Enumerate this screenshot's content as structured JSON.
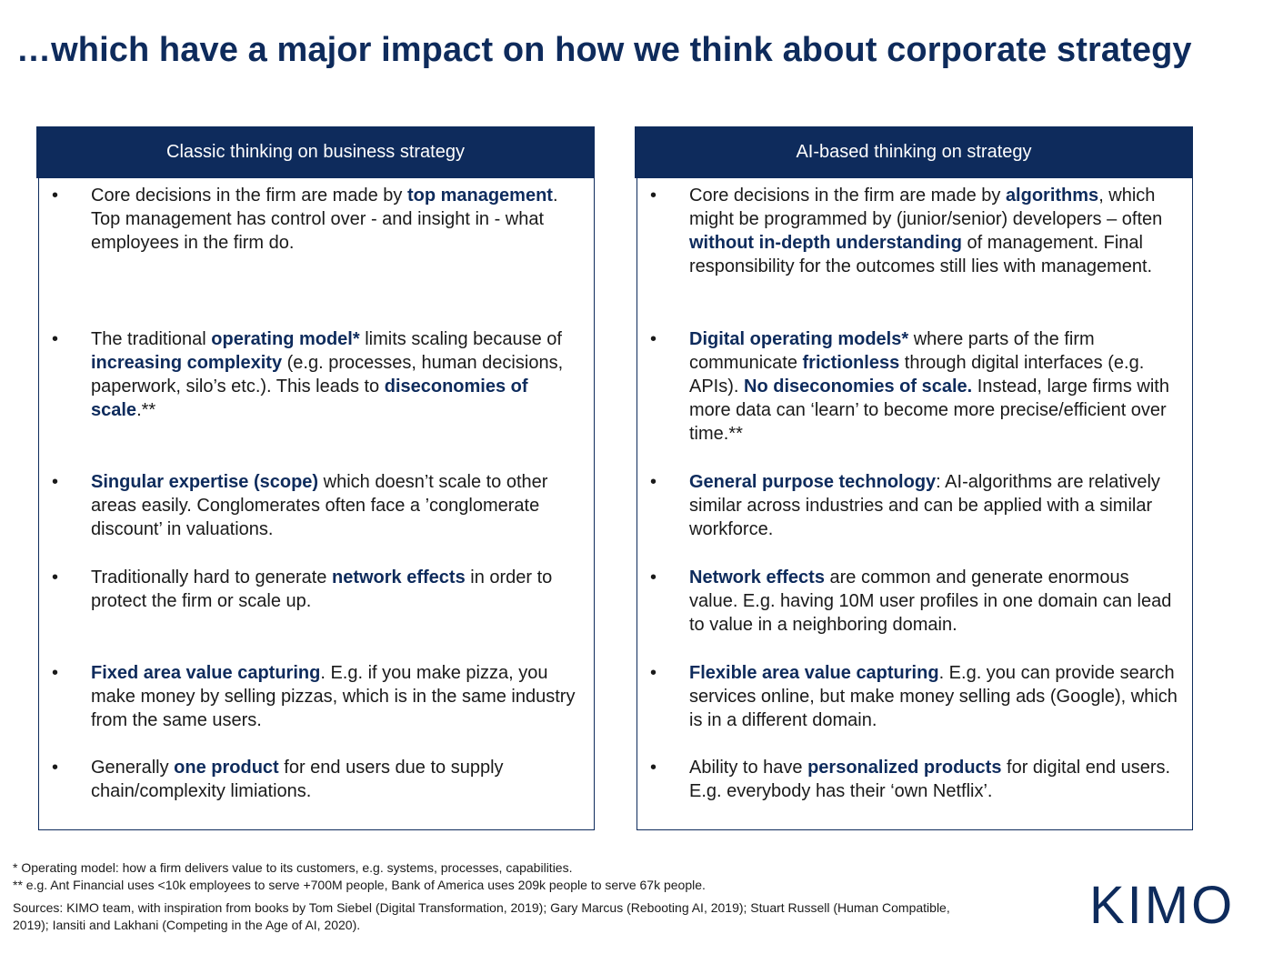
{
  "title": "…which have a major impact on how we think about corporate strategy",
  "left": {
    "header": "Classic thinking on business strategy",
    "items": [
      {
        "bullet": "•",
        "parts": [
          {
            "t": "Core decisions in the firm are made by "
          },
          {
            "t": "top management",
            "b": true
          },
          {
            "t": ". Top management has control over - and insight in - what employees in the firm do."
          }
        ]
      },
      {
        "bullet": "•",
        "parts": [
          {
            "t": "The traditional "
          },
          {
            "t": "operating model*",
            "b": true
          },
          {
            "t": " limits scaling because of  "
          },
          {
            "t": "increasing complexity",
            "b": true
          },
          {
            "t": " (e.g. processes, human decisions, paperwork, silo’s etc.). This leads to "
          },
          {
            "t": "diseconomies of scale",
            "b": true
          },
          {
            "t": ".**"
          }
        ]
      },
      {
        "bullet": "•",
        "parts": [
          {
            "t": "Singular expertise (scope)",
            "b": true
          },
          {
            "t": " which doesn’t scale to other areas easily. Conglomerates often face a ’conglomerate discount’ in valuations."
          }
        ]
      },
      {
        "bullet": "•",
        "parts": [
          {
            "t": "Traditionally hard to generate "
          },
          {
            "t": "network effects",
            "b": true
          },
          {
            "t": " in order to protect the firm or scale up."
          }
        ]
      },
      {
        "bullet": "•",
        "parts": [
          {
            "t": "Fixed area value capturing",
            "b": true
          },
          {
            "t": ". E.g. if you make pizza, you make money by selling pizzas, which is in the same industry from the same users."
          }
        ]
      },
      {
        "bullet": "•",
        "parts": [
          {
            "t": "Generally "
          },
          {
            "t": "one product",
            "b": true
          },
          {
            "t": " for end users due to supply chain/complexity limiations."
          }
        ]
      }
    ]
  },
  "right": {
    "header": "AI-based thinking on strategy",
    "items": [
      {
        "bullet": "•",
        "parts": [
          {
            "t": "Core decisions in the firm are made by "
          },
          {
            "t": "algorithms",
            "b": true
          },
          {
            "t": ", which might be programmed by (junior/senior) developers – often "
          },
          {
            "t": "without in-depth understanding",
            "b": true
          },
          {
            "t": " of management. Final responsibility for the outcomes still lies with management."
          }
        ]
      },
      {
        "bullet": "•",
        "parts": [
          {
            "t": "Digital operating models*",
            "b": true
          },
          {
            "t": " where parts of the firm communicate "
          },
          {
            "t": "frictionless",
            "b": true
          },
          {
            "t": " through digital interfaces (e.g. APIs). "
          },
          {
            "t": "No diseconomies of scale.",
            "b": true
          },
          {
            "t": " Instead, large firms with more data can ‘learn’ to become more precise/efficient over time.**"
          }
        ]
      },
      {
        "bullet": "•",
        "parts": [
          {
            "t": "General purpose technology",
            "b": true
          },
          {
            "t": ": AI-algorithms are relatively similar across industries and can be applied with a similar workforce."
          }
        ]
      },
      {
        "bullet": "•",
        "parts": [
          {
            "t": "Network effects",
            "b": true
          },
          {
            "t": " are common and generate enormous value. E.g. having 10M user profiles in one domain can lead to value in a neighboring domain."
          }
        ]
      },
      {
        "bullet": "•",
        "parts": [
          {
            "t": "Flexible area value capturing",
            "b": true
          },
          {
            "t": ". E.g. you can provide search services online, but make money selling ads (Google), which is in a different domain."
          }
        ]
      },
      {
        "bullet": "•",
        "parts": [
          {
            "t": "Ability to have "
          },
          {
            "t": "personalized products",
            "b": true
          },
          {
            "t": " for digital end users. E.g. everybody has their ‘own Netflix’."
          }
        ]
      }
    ]
  },
  "footnotes": {
    "note1": "* Operating model: how a firm delivers value to its customers, e.g. systems, processes, capabilities.",
    "note2": "** e.g. Ant Financial uses <10k employees to serve +700M people, Bank of America uses 209k people to serve 67k people.",
    "sources": "Sources: KIMO team, with inspiration from books by Tom Siebel (Digital Transformation, 2019); Gary Marcus (Rebooting AI, 2019); Stuart Russell (Human Compatible, 2019); Iansiti and Lakhani (Competing in the Age of AI, 2020)."
  },
  "logo": "KIMO"
}
